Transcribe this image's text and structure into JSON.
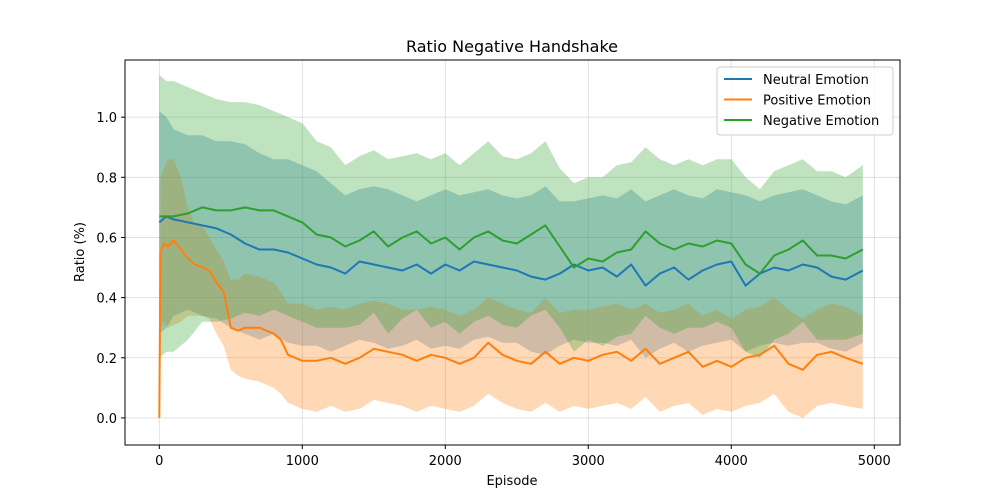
{
  "chart_data": {
    "type": "line",
    "title": "Ratio Negative Handshake",
    "xlabel": "Episode",
    "ylabel": "Ratio (%)",
    "xlim": [
      -240,
      5180
    ],
    "ylim": [
      -0.09,
      1.19
    ],
    "xticks": [
      0,
      1000,
      2000,
      3000,
      4000,
      5000
    ],
    "xtick_labels": [
      "0",
      "1000",
      "2000",
      "3000",
      "4000",
      "5000"
    ],
    "yticks": [
      0.0,
      0.2,
      0.4,
      0.6,
      0.8,
      1.0
    ],
    "ytick_labels": [
      "0.0",
      "0.2",
      "0.4",
      "0.6",
      "0.8",
      "1.0"
    ],
    "grid": true,
    "legend_position": "top-right",
    "series": [
      {
        "name": "Neutral Emotion",
        "color": "#1f77b4",
        "fill_alpha": 0.3,
        "x": [
          0,
          50,
          100,
          200,
          300,
          400,
          500,
          600,
          700,
          800,
          900,
          1000,
          1100,
          1200,
          1300,
          1400,
          1500,
          1600,
          1700,
          1800,
          1900,
          2000,
          2100,
          2200,
          2300,
          2400,
          2500,
          2600,
          2700,
          2800,
          2900,
          3000,
          3100,
          3200,
          3300,
          3400,
          3500,
          3600,
          3700,
          3800,
          3900,
          4000,
          4100,
          4200,
          4300,
          4400,
          4500,
          4600,
          4700,
          4800,
          4920
        ],
        "y": [
          0.65,
          0.67,
          0.66,
          0.65,
          0.64,
          0.63,
          0.61,
          0.58,
          0.56,
          0.56,
          0.55,
          0.53,
          0.51,
          0.5,
          0.48,
          0.52,
          0.51,
          0.5,
          0.49,
          0.51,
          0.48,
          0.51,
          0.49,
          0.52,
          0.51,
          0.5,
          0.49,
          0.47,
          0.46,
          0.48,
          0.51,
          0.49,
          0.5,
          0.47,
          0.51,
          0.44,
          0.48,
          0.5,
          0.46,
          0.49,
          0.51,
          0.52,
          0.44,
          0.48,
          0.5,
          0.49,
          0.51,
          0.5,
          0.47,
          0.46,
          0.49
        ],
        "band_upper": [
          1.02,
          1.0,
          0.96,
          0.94,
          0.94,
          0.92,
          0.92,
          0.91,
          0.88,
          0.86,
          0.86,
          0.84,
          0.82,
          0.78,
          0.74,
          0.76,
          0.77,
          0.76,
          0.74,
          0.72,
          0.74,
          0.76,
          0.74,
          0.75,
          0.76,
          0.74,
          0.73,
          0.74,
          0.77,
          0.72,
          0.72,
          0.73,
          0.74,
          0.73,
          0.76,
          0.72,
          0.74,
          0.76,
          0.74,
          0.73,
          0.76,
          0.75,
          0.74,
          0.72,
          0.74,
          0.75,
          0.76,
          0.74,
          0.72,
          0.71,
          0.74
        ],
        "band_lower": [
          0.28,
          0.3,
          0.34,
          0.36,
          0.34,
          0.33,
          0.3,
          0.28,
          0.26,
          0.28,
          0.25,
          0.24,
          0.24,
          0.22,
          0.24,
          0.26,
          0.25,
          0.23,
          0.24,
          0.26,
          0.23,
          0.24,
          0.23,
          0.26,
          0.27,
          0.25,
          0.25,
          0.22,
          0.21,
          0.24,
          0.26,
          0.25,
          0.25,
          0.24,
          0.26,
          0.2,
          0.23,
          0.25,
          0.22,
          0.24,
          0.25,
          0.26,
          0.22,
          0.24,
          0.25,
          0.24,
          0.25,
          0.25,
          0.23,
          0.22,
          0.25
        ]
      },
      {
        "name": "Positive Emotion",
        "color": "#ff7f0e",
        "fill_alpha": 0.3,
        "x": [
          0,
          8,
          30,
          60,
          100,
          150,
          200,
          250,
          300,
          350,
          400,
          450,
          500,
          550,
          600,
          700,
          800,
          850,
          900,
          1000,
          1100,
          1200,
          1300,
          1400,
          1500,
          1600,
          1700,
          1800,
          1900,
          2000,
          2100,
          2200,
          2300,
          2400,
          2500,
          2600,
          2700,
          2800,
          2900,
          3000,
          3100,
          3200,
          3300,
          3400,
          3500,
          3600,
          3700,
          3800,
          3900,
          4000,
          4100,
          4200,
          4300,
          4400,
          4500,
          4600,
          4700,
          4800,
          4920
        ],
        "y": [
          0.0,
          0.55,
          0.58,
          0.57,
          0.59,
          0.56,
          0.53,
          0.51,
          0.5,
          0.49,
          0.45,
          0.42,
          0.3,
          0.29,
          0.3,
          0.3,
          0.28,
          0.26,
          0.21,
          0.19,
          0.19,
          0.2,
          0.18,
          0.2,
          0.23,
          0.22,
          0.21,
          0.19,
          0.21,
          0.2,
          0.18,
          0.2,
          0.25,
          0.21,
          0.19,
          0.18,
          0.22,
          0.18,
          0.2,
          0.19,
          0.21,
          0.22,
          0.19,
          0.23,
          0.18,
          0.2,
          0.22,
          0.17,
          0.19,
          0.17,
          0.2,
          0.21,
          0.24,
          0.18,
          0.16,
          0.21,
          0.22,
          0.2,
          0.18
        ],
        "band_upper": [
          0.0,
          0.8,
          0.83,
          0.86,
          0.86,
          0.8,
          0.7,
          0.64,
          0.64,
          0.6,
          0.56,
          0.52,
          0.46,
          0.46,
          0.48,
          0.47,
          0.45,
          0.42,
          0.38,
          0.38,
          0.36,
          0.37,
          0.36,
          0.38,
          0.39,
          0.38,
          0.36,
          0.36,
          0.37,
          0.36,
          0.34,
          0.36,
          0.4,
          0.38,
          0.36,
          0.35,
          0.4,
          0.35,
          0.36,
          0.36,
          0.37,
          0.38,
          0.36,
          0.38,
          0.35,
          0.36,
          0.38,
          0.34,
          0.36,
          0.33,
          0.36,
          0.37,
          0.4,
          0.36,
          0.33,
          0.36,
          0.38,
          0.37,
          0.34
        ],
        "band_lower": [
          0.0,
          0.3,
          0.32,
          0.3,
          0.31,
          0.32,
          0.34,
          0.34,
          0.34,
          0.33,
          0.28,
          0.24,
          0.16,
          0.14,
          0.13,
          0.12,
          0.1,
          0.08,
          0.05,
          0.03,
          0.02,
          0.04,
          0.02,
          0.03,
          0.06,
          0.05,
          0.04,
          0.02,
          0.04,
          0.03,
          0.02,
          0.04,
          0.08,
          0.05,
          0.03,
          0.02,
          0.05,
          0.02,
          0.04,
          0.03,
          0.04,
          0.05,
          0.03,
          0.07,
          0.02,
          0.04,
          0.05,
          0.01,
          0.03,
          0.02,
          0.04,
          0.05,
          0.08,
          0.02,
          0.0,
          0.04,
          0.05,
          0.04,
          0.03
        ]
      },
      {
        "name": "Negative Emotion",
        "color": "#2ca02c",
        "fill_alpha": 0.3,
        "x": [
          0,
          50,
          100,
          200,
          300,
          400,
          500,
          600,
          700,
          800,
          900,
          1000,
          1100,
          1200,
          1300,
          1400,
          1500,
          1600,
          1700,
          1800,
          1900,
          2000,
          2100,
          2200,
          2300,
          2400,
          2500,
          2600,
          2700,
          2800,
          2900,
          3000,
          3100,
          3200,
          3300,
          3400,
          3500,
          3600,
          3700,
          3800,
          3900,
          4000,
          4100,
          4200,
          4300,
          4400,
          4500,
          4600,
          4700,
          4800,
          4920
        ],
        "y": [
          0.67,
          0.67,
          0.67,
          0.68,
          0.7,
          0.69,
          0.69,
          0.7,
          0.69,
          0.69,
          0.67,
          0.65,
          0.61,
          0.6,
          0.57,
          0.59,
          0.62,
          0.57,
          0.6,
          0.62,
          0.58,
          0.6,
          0.56,
          0.6,
          0.62,
          0.59,
          0.58,
          0.61,
          0.64,
          0.57,
          0.5,
          0.53,
          0.52,
          0.55,
          0.56,
          0.62,
          0.58,
          0.56,
          0.58,
          0.57,
          0.59,
          0.58,
          0.51,
          0.48,
          0.54,
          0.56,
          0.59,
          0.54,
          0.54,
          0.53,
          0.56
        ],
        "band_upper": [
          1.14,
          1.12,
          1.12,
          1.1,
          1.08,
          1.06,
          1.05,
          1.05,
          1.04,
          1.02,
          1.0,
          0.98,
          0.92,
          0.9,
          0.84,
          0.87,
          0.89,
          0.86,
          0.87,
          0.88,
          0.86,
          0.88,
          0.84,
          0.88,
          0.92,
          0.87,
          0.86,
          0.88,
          0.92,
          0.83,
          0.78,
          0.8,
          0.8,
          0.84,
          0.85,
          0.9,
          0.86,
          0.84,
          0.86,
          0.84,
          0.86,
          0.86,
          0.8,
          0.76,
          0.82,
          0.84,
          0.86,
          0.82,
          0.82,
          0.8,
          0.84
        ],
        "band_lower": [
          0.2,
          0.22,
          0.22,
          0.26,
          0.32,
          0.32,
          0.33,
          0.35,
          0.34,
          0.36,
          0.34,
          0.32,
          0.3,
          0.3,
          0.3,
          0.31,
          0.35,
          0.28,
          0.33,
          0.36,
          0.3,
          0.32,
          0.28,
          0.32,
          0.34,
          0.31,
          0.3,
          0.34,
          0.36,
          0.3,
          0.22,
          0.26,
          0.24,
          0.27,
          0.28,
          0.34,
          0.3,
          0.28,
          0.3,
          0.3,
          0.32,
          0.3,
          0.22,
          0.2,
          0.26,
          0.28,
          0.32,
          0.26,
          0.26,
          0.26,
          0.28
        ]
      }
    ]
  }
}
